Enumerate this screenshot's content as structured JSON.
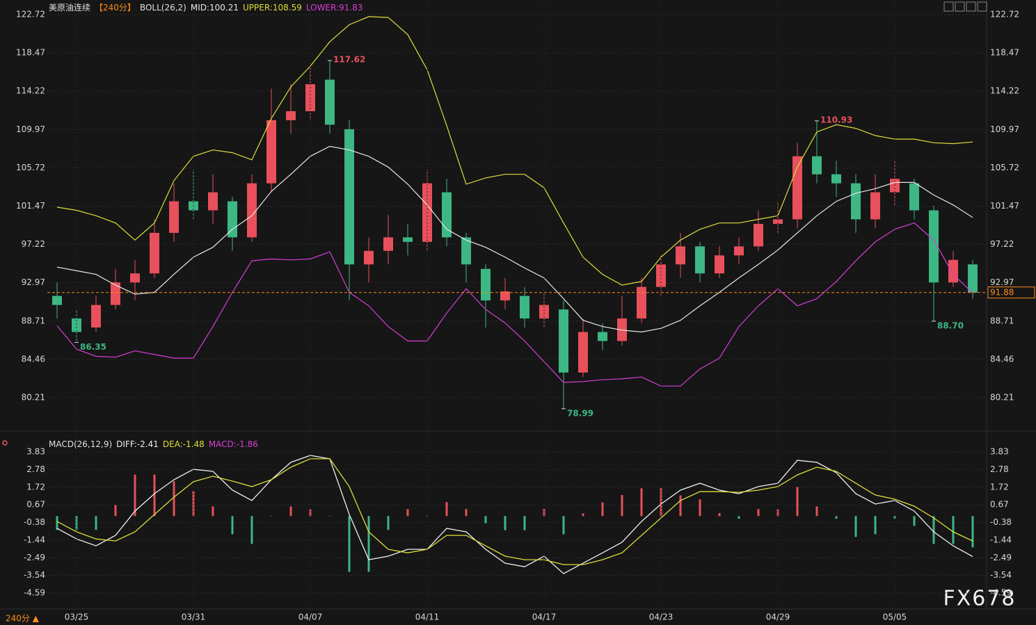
{
  "chart_data": [
    {
      "type": "candlestick",
      "title": "美原油连续",
      "period": "【240分】",
      "indicator": "BOLL(26,2)",
      "ylim": [
        77.28,
        124.34
      ],
      "yticks": [
        122.72,
        118.47,
        114.22,
        109.97,
        105.72,
        101.47,
        97.22,
        92.97,
        88.71,
        84.46,
        80.21
      ],
      "grid": true,
      "up_color": "#e8505b",
      "down_color": "#3db784",
      "open": [
        91.5,
        89,
        88,
        90.5,
        93,
        94,
        98.5,
        102,
        101,
        102,
        98,
        104,
        111,
        112,
        115.5,
        110,
        95,
        96.5,
        98,
        97.5,
        103,
        98,
        94.5,
        91,
        91.5,
        89,
        90,
        83,
        87.5,
        86.5,
        89,
        92.5,
        95,
        97,
        94,
        96,
        97,
        99.5,
        100,
        107,
        105,
        104,
        100,
        103,
        104,
        101,
        93,
        95
      ],
      "high": [
        93,
        90,
        91.5,
        94.5,
        95.5,
        100,
        104,
        105.5,
        105,
        102.5,
        105,
        114.5,
        115,
        117,
        117.62,
        111,
        98,
        100.5,
        99.5,
        105.5,
        104.5,
        98.5,
        95,
        93.5,
        92.5,
        92,
        91,
        89,
        88.5,
        91.5,
        93.5,
        96,
        98.5,
        97.5,
        97,
        98,
        101,
        102,
        108.5,
        110.93,
        106.5,
        105,
        105,
        106.5,
        104.5,
        101.5,
        96.5,
        95.5
      ],
      "low": [
        89,
        86.35,
        87.5,
        90,
        91,
        93.5,
        97.5,
        100,
        99.5,
        96.5,
        97.5,
        103,
        109.5,
        111,
        109.5,
        91,
        93,
        95,
        96,
        96.5,
        97,
        93,
        88,
        90,
        88,
        88,
        78.99,
        82.5,
        85.5,
        86,
        88.5,
        91.5,
        93.5,
        93,
        93.5,
        95,
        96.5,
        98.5,
        99,
        104,
        102.5,
        98.5,
        99,
        101.5,
        100,
        88.7,
        92.5,
        91.2
      ],
      "close": [
        90.5,
        87.5,
        90.5,
        93,
        94,
        98.5,
        102,
        101,
        103,
        98,
        104,
        111,
        112,
        115,
        110.5,
        95,
        96.5,
        98,
        97.5,
        104,
        98,
        95,
        91,
        92,
        89,
        90.5,
        83,
        87.5,
        86.5,
        89,
        92.5,
        95,
        97,
        94,
        96,
        97,
        99.5,
        100,
        107,
        105,
        104,
        100,
        103,
        104.5,
        101,
        93,
        95.5,
        91.88
      ],
      "high_labels": [
        null,
        null,
        null,
        null,
        null,
        null,
        null,
        null,
        null,
        null,
        null,
        null,
        null,
        null,
        "117.62",
        null,
        null,
        null,
        null,
        null,
        null,
        null,
        null,
        null,
        null,
        null,
        null,
        null,
        null,
        null,
        null,
        null,
        null,
        null,
        null,
        null,
        null,
        null,
        null,
        "110.93",
        null,
        null,
        null,
        null,
        null,
        null,
        null,
        null
      ],
      "low_labels": [
        null,
        "86.35",
        null,
        null,
        null,
        null,
        null,
        null,
        null,
        null,
        null,
        null,
        null,
        null,
        null,
        null,
        null,
        null,
        null,
        null,
        null,
        null,
        null,
        null,
        null,
        null,
        "78.99",
        null,
        null,
        null,
        null,
        null,
        null,
        null,
        null,
        null,
        null,
        null,
        null,
        null,
        null,
        null,
        null,
        null,
        null,
        "88.70",
        null,
        null
      ],
      "last_price": 91.88,
      "last_color": "#ff8c1a",
      "series": [
        {
          "name": "MID:100.21",
          "color": "#e8e8e8",
          "values": [
            94.7,
            94.3,
            93.9,
            92.7,
            91.7,
            91.9,
            93.9,
            95.8,
            96.9,
            98.9,
            100.4,
            103.1,
            105,
            107,
            108.1,
            107.7,
            107,
            105.8,
            103.9,
            101.6,
            98.9,
            97.7,
            96.9,
            95.8,
            94.6,
            93.5,
            91.2,
            88.8,
            88.1,
            87.7,
            87.5,
            87.9,
            88.8,
            90.4,
            91.9,
            93.5,
            95,
            96.6,
            98.5,
            100.4,
            102,
            102.9,
            103.4,
            104.1,
            104.1,
            102.7,
            101.6,
            100.21
          ]
        },
        {
          "name": "UPPER:108.59",
          "color": "#dede3c",
          "values": [
            101.35,
            101,
            100.4,
            99.6,
            97.7,
            99.6,
            104.3,
            107,
            107.7,
            107.4,
            106.6,
            111.2,
            114.7,
            117,
            119.7,
            121.6,
            122.5,
            122.4,
            120.5,
            116.6,
            110.4,
            103.9,
            104.6,
            105,
            105,
            103.5,
            99.6,
            95.8,
            93.9,
            92.7,
            93.1,
            95.8,
            97.7,
            98.9,
            99.6,
            99.6,
            100,
            100.4,
            105.8,
            109.7,
            110.5,
            110.1,
            109.3,
            108.9,
            108.9,
            108.5,
            108.4,
            108.59
          ]
        },
        {
          "name": "LOWER:91.83",
          "color": "#d83fd8",
          "values": [
            88.2,
            85.6,
            84.8,
            84.7,
            85.4,
            85,
            84.6,
            84.6,
            88.1,
            91.9,
            95.4,
            95.6,
            95.5,
            95.6,
            96.4,
            91.9,
            90.4,
            88.1,
            86.5,
            86.5,
            89.6,
            92.3,
            90,
            88.5,
            86.5,
            84.2,
            81.9,
            82,
            82.2,
            82.3,
            82.5,
            81.5,
            81.5,
            83.4,
            84.6,
            88.1,
            90.4,
            92.3,
            90.4,
            91.2,
            93.1,
            95.4,
            97.5,
            98.9,
            99.6,
            97.7,
            93.9,
            91.83
          ]
        }
      ]
    },
    {
      "type": "macd",
      "indicator": "MACD(26,12,9)",
      "ylim": [
        -5.5,
        4.66
      ],
      "yticks": [
        3.83,
        2.78,
        1.72,
        0.67,
        -0.38,
        -1.44,
        -2.49,
        -3.54,
        -4.59
      ],
      "grid": true,
      "categories": [
        null,
        "03/25",
        null,
        null,
        null,
        null,
        null,
        "03/31",
        null,
        null,
        null,
        null,
        null,
        "04/07",
        null,
        null,
        null,
        null,
        null,
        "04/11",
        null,
        null,
        null,
        null,
        null,
        "04/17",
        null,
        null,
        null,
        null,
        null,
        "04/23",
        null,
        null,
        null,
        null,
        null,
        "04/29",
        null,
        null,
        null,
        null,
        null,
        "05/05",
        null,
        null,
        null,
        null
      ],
      "series": [
        {
          "name": "DIFF:-2.41",
          "color": "#f0f0f0",
          "values": [
            -0.73,
            -1.36,
            -1.77,
            -1.15,
            0.3,
            1.34,
            2.17,
            2.79,
            2.67,
            1.55,
            0.93,
            2.17,
            3.21,
            3.62,
            3.42,
            0.1,
            -2.6,
            -2.39,
            -1.98,
            -1.98,
            -0.73,
            -0.94,
            -1.98,
            -2.81,
            -3.02,
            -2.39,
            -3.43,
            -2.81,
            -2.19,
            -1.56,
            -0.32,
            0.72,
            1.55,
            1.96,
            1.55,
            1.34,
            1.76,
            1.96,
            3.33,
            3.21,
            2.59,
            1.34,
            0.72,
            0.93,
            0.3,
            -0.94,
            -1.77,
            -2.41
          ]
        },
        {
          "name": "DEA:-1.48",
          "color": "#dede3c",
          "values": [
            -0.32,
            -0.94,
            -1.36,
            -1.48,
            -0.94,
            0.1,
            1.13,
            2.05,
            2.38,
            2.09,
            1.76,
            2.17,
            2.92,
            3.42,
            3.42,
            1.76,
            -0.94,
            -1.98,
            -2.19,
            -1.98,
            -1.15,
            -1.15,
            -1.77,
            -2.39,
            -2.6,
            -2.6,
            -2.89,
            -2.89,
            -2.6,
            -2.19,
            -1.15,
            -0.11,
            0.93,
            1.46,
            1.46,
            1.42,
            1.55,
            1.76,
            2.46,
            2.92,
            2.67,
            1.96,
            1.26,
            1.01,
            0.59,
            -0.11,
            -0.94,
            -1.48
          ]
        },
        {
          "name": "MACD:-1.86",
          "color": "#d83fd8",
          "up_color": "#e8505b",
          "down_color": "#3db784",
          "values": [
            -0.82,
            -0.84,
            -0.82,
            0.66,
            2.48,
            2.48,
            2.08,
            1.48,
            0.58,
            -1.08,
            -1.66,
            0,
            0.58,
            0.4,
            0,
            -3.32,
            -3.32,
            -0.82,
            0.42,
            0,
            0.84,
            0.42,
            -0.42,
            -0.84,
            -0.84,
            0.42,
            -1.08,
            0.16,
            0.82,
            1.26,
            1.66,
            1.66,
            1.24,
            1.0,
            0.18,
            -0.16,
            0.42,
            0.4,
            1.74,
            0.58,
            -0.16,
            -1.24,
            -1.08,
            -0.16,
            -0.58,
            -1.66,
            -1.66,
            -1.86
          ]
        }
      ]
    }
  ],
  "footer": "240分 ▲",
  "watermark": "FX678"
}
